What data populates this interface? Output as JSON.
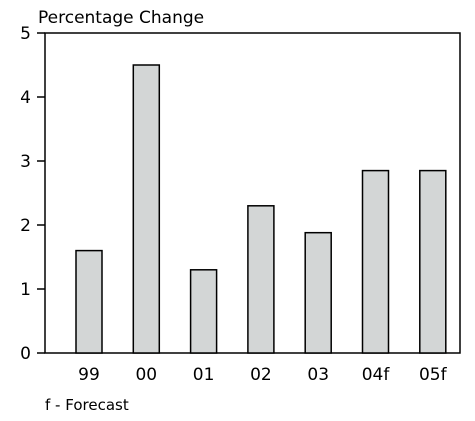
{
  "chart_data": {
    "type": "bar",
    "categories": [
      "99",
      "00",
      "01",
      "02",
      "03",
      "04f",
      "05f"
    ],
    "values": [
      1.6,
      4.5,
      1.3,
      2.3,
      1.88,
      2.85,
      2.85
    ],
    "ylabel": "Percentage Change",
    "xlabel": "",
    "ylim": [
      0,
      5
    ],
    "yticks": [
      "0",
      "1",
      "2",
      "3",
      "4",
      "5"
    ],
    "grid": false,
    "bar_color": "#d3d6d6",
    "bar_outline": "#000000",
    "footnote": "f - Forecast"
  }
}
